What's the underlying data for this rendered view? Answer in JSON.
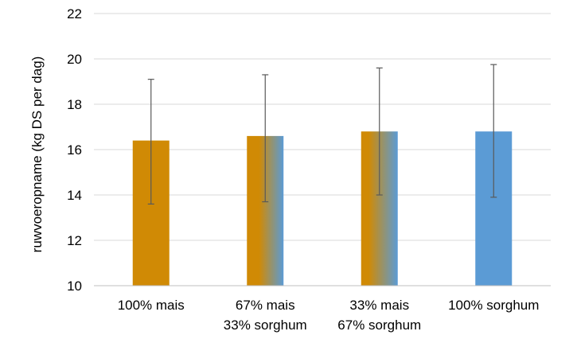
{
  "chart_data": {
    "type": "bar",
    "title": "",
    "xlabel": "",
    "ylabel": "ruwvoeropname (kg DS per dag)",
    "ylim": [
      10,
      22
    ],
    "yticks": [
      10,
      12,
      14,
      16,
      18,
      20,
      22
    ],
    "grid": true,
    "legend": "none",
    "categories": [
      [
        "100% mais"
      ],
      [
        "67% mais",
        "33% sorghum"
      ],
      [
        "33% mais",
        "67% sorghum"
      ],
      [
        "100% sorghum"
      ]
    ],
    "values": [
      16.4,
      16.6,
      16.8,
      16.8
    ],
    "error_low": [
      13.6,
      13.7,
      14.0,
      13.9
    ],
    "error_high": [
      19.1,
      19.3,
      19.6,
      19.75
    ],
    "bar_fill": [
      "mais",
      "mais-sorghum-gradient",
      "mais-sorghum-gradient",
      "sorghum"
    ],
    "colors": {
      "mais": "#d08a05",
      "sorghum": "#5b9bd5",
      "grid": "#d9d9d9",
      "axis": "#bfbfbf",
      "error_bar": "#595959"
    }
  }
}
